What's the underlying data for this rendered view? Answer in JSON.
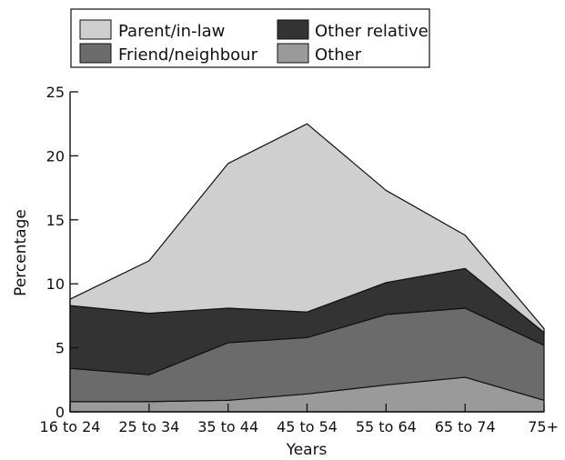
{
  "chart_data": {
    "type": "area",
    "stacked": true,
    "categories": [
      "16 to 24",
      "25 to 34",
      "35 to 44",
      "45 to 54",
      "55 to 64",
      "65 to 74",
      "75+"
    ],
    "series": [
      {
        "name": "Other",
        "values": [
          0.8,
          0.8,
          0.9,
          1.4,
          2.1,
          2.7,
          0.9
        ],
        "color": "#9a9a9a"
      },
      {
        "name": "Friend/neighbour",
        "values": [
          2.6,
          2.1,
          4.5,
          4.4,
          5.5,
          5.4,
          4.3
        ],
        "color": "#6b6b6b"
      },
      {
        "name": "Other relative",
        "values": [
          4.9,
          4.8,
          2.7,
          2.0,
          2.5,
          3.1,
          1.0
        ],
        "color": "#333333"
      },
      {
        "name": "Parent/in-law",
        "values": [
          0.5,
          4.1,
          11.3,
          14.7,
          7.2,
          2.6,
          0.3
        ],
        "color": "#cfcfcf"
      }
    ],
    "xlabel": "Years",
    "ylabel": "Percentage",
    "ylim": [
      0,
      25
    ],
    "yticks": [
      "0",
      "5",
      "10",
      "15",
      "20",
      "25"
    ],
    "grid": false,
    "legend_position": "top",
    "legend_order": [
      "Parent/in-law",
      "Other relative",
      "Friend/neighbour",
      "Other"
    ]
  }
}
